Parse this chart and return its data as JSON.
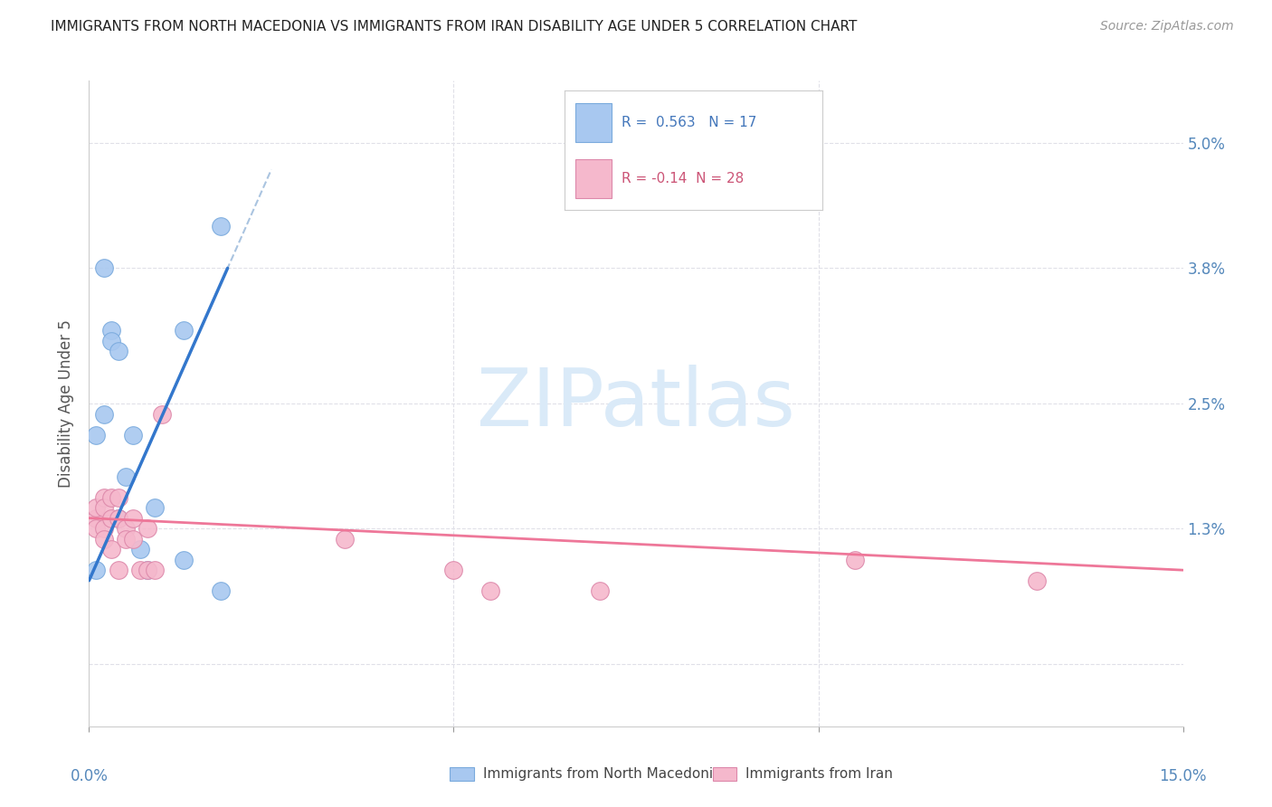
{
  "title": "IMMIGRANTS FROM NORTH MACEDONIA VS IMMIGRANTS FROM IRAN DISABILITY AGE UNDER 5 CORRELATION CHART",
  "source": "Source: ZipAtlas.com",
  "ylabel": "Disability Age Under 5",
  "legend_label1": "Immigrants from North Macedonia",
  "legend_label2": "Immigrants from Iran",
  "R1": 0.563,
  "N1": 17,
  "R2": -0.14,
  "N2": 28,
  "color_blue": "#a8c8f0",
  "color_blue_edge": "#7aaadd",
  "color_pink": "#f5b8cc",
  "color_pink_edge": "#dd88aa",
  "color_blue_line": "#3377cc",
  "color_pink_line": "#ee7799",
  "color_dashed": "#aac4e0",
  "watermark_color": "#daeaf8",
  "xmin": 0.0,
  "xmax": 0.15,
  "ymin": -0.006,
  "ymax": 0.056,
  "ytick_vals": [
    0.0,
    0.013,
    0.025,
    0.038,
    0.05
  ],
  "ytick_labels": [
    "",
    "1.3%",
    "2.5%",
    "3.8%",
    "5.0%"
  ],
  "background_color": "#ffffff",
  "grid_color": "#e0e0e8",
  "mac_x": [
    0.001,
    0.001,
    0.002,
    0.002,
    0.003,
    0.003,
    0.004,
    0.004,
    0.005,
    0.006,
    0.007,
    0.008,
    0.009,
    0.013,
    0.013,
    0.018,
    0.018
  ],
  "mac_y": [
    0.009,
    0.022,
    0.038,
    0.024,
    0.032,
    0.031,
    0.03,
    0.014,
    0.018,
    0.022,
    0.011,
    0.009,
    0.015,
    0.01,
    0.032,
    0.042,
    0.007
  ],
  "iran_x": [
    0.001,
    0.001,
    0.001,
    0.002,
    0.002,
    0.002,
    0.002,
    0.003,
    0.003,
    0.003,
    0.004,
    0.004,
    0.004,
    0.005,
    0.005,
    0.006,
    0.006,
    0.007,
    0.008,
    0.008,
    0.009,
    0.01,
    0.035,
    0.05,
    0.055,
    0.07,
    0.105,
    0.13
  ],
  "iran_y": [
    0.014,
    0.015,
    0.013,
    0.016,
    0.015,
    0.013,
    0.012,
    0.016,
    0.014,
    0.011,
    0.016,
    0.014,
    0.009,
    0.013,
    0.012,
    0.014,
    0.012,
    0.009,
    0.009,
    0.013,
    0.009,
    0.024,
    0.012,
    0.009,
    0.007,
    0.007,
    0.01,
    0.008
  ],
  "mac_trend_x": [
    0.0,
    0.019
  ],
  "iran_trend_x": [
    0.0,
    0.15
  ],
  "mac_trend_y_start": 0.008,
  "mac_trend_y_end": 0.038,
  "iran_trend_y_start": 0.014,
  "iran_trend_y_end": 0.009
}
